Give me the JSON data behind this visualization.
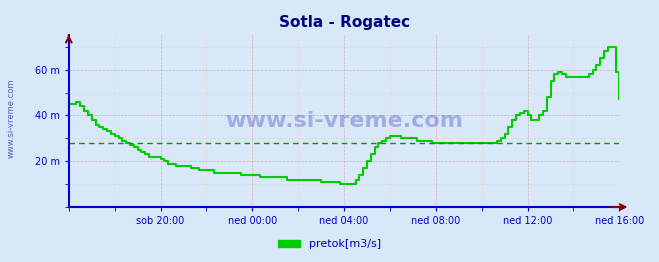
{
  "title": "Sotla - Rogatec",
  "title_color": "#000080",
  "bg_color": "#d8e8f8",
  "plot_bg_color": "#d8e8f8",
  "line_color": "#00cc00",
  "line_width": 1.5,
  "axis_color": "#0000cc",
  "tick_color": "#0000cc",
  "grid_color_major": "#cc9999",
  "grid_color_minor": "#eecccc",
  "ylabel_color": "#0000aa",
  "watermark": "www.si-vreme.com",
  "legend_label": "pretok[m3/s]",
  "legend_color": "#00cc00",
  "xticklabels": [
    "sob 20:00",
    "ned 00:00",
    "ned 04:00",
    "ned 08:00",
    "ned 12:00",
    "ned 16:00"
  ],
  "yticks": [
    20,
    40,
    60
  ],
  "yticklabels": [
    "20 m",
    "40 m",
    "60 m"
  ],
  "ylim": [
    0,
    75
  ],
  "xlim": [
    0,
    288
  ],
  "hline_value": 28,
  "hline_color": "#009900",
  "hline_style": "--",
  "x_tick_positions": [
    48,
    96,
    144,
    192,
    240,
    288
  ],
  "y_tick_positions": [
    20,
    40,
    60
  ],
  "data_x": [
    0,
    2,
    4,
    6,
    8,
    10,
    12,
    14,
    16,
    18,
    20,
    22,
    24,
    26,
    28,
    30,
    32,
    34,
    36,
    38,
    40,
    42,
    44,
    46,
    48,
    50,
    52,
    54,
    56,
    58,
    60,
    62,
    64,
    66,
    68,
    70,
    72,
    74,
    76,
    78,
    80,
    82,
    84,
    86,
    88,
    90,
    92,
    94,
    96,
    98,
    100,
    102,
    104,
    106,
    108,
    110,
    112,
    114,
    116,
    118,
    120,
    122,
    124,
    126,
    128,
    130,
    132,
    134,
    136,
    138,
    140,
    142,
    144,
    146,
    148,
    150,
    152,
    154,
    156,
    158,
    160,
    162,
    164,
    166,
    168,
    170,
    172,
    174,
    176,
    178,
    180,
    182,
    184,
    186,
    188,
    190,
    192,
    194,
    196,
    198,
    200,
    202,
    204,
    206,
    208,
    210,
    212,
    214,
    216,
    218,
    220,
    222,
    224,
    226,
    228,
    230,
    232,
    234,
    236,
    238,
    240,
    242,
    244,
    246,
    248,
    250,
    252,
    254,
    256,
    258,
    260,
    262,
    264,
    266,
    268,
    270,
    272,
    274,
    276,
    278,
    280,
    282,
    284,
    286,
    288
  ],
  "data_y": [
    45,
    45,
    46,
    44,
    42,
    40,
    38,
    36,
    35,
    34,
    33,
    32,
    31,
    30,
    29,
    28,
    27,
    26,
    25,
    24,
    23,
    22,
    22,
    22,
    21,
    20,
    19,
    19,
    18,
    18,
    18,
    18,
    17,
    17,
    16,
    16,
    16,
    16,
    15,
    15,
    15,
    15,
    15,
    15,
    15,
    14,
    14,
    14,
    14,
    14,
    13,
    13,
    13,
    13,
    13,
    13,
    13,
    12,
    12,
    12,
    12,
    12,
    12,
    12,
    12,
    12,
    11,
    11,
    11,
    11,
    11,
    10,
    10,
    10,
    10,
    12,
    14,
    17,
    20,
    23,
    26,
    28,
    29,
    30,
    31,
    31,
    31,
    30,
    30,
    30,
    30,
    29,
    29,
    29,
    29,
    28,
    28,
    28,
    28,
    28,
    28,
    28,
    28,
    28,
    28,
    28,
    28,
    28,
    28,
    28,
    28,
    28,
    29,
    30,
    32,
    35,
    38,
    40,
    41,
    42,
    40,
    38,
    38,
    40,
    42,
    48,
    55,
    58,
    59,
    58,
    57,
    57,
    57,
    57,
    57,
    57,
    58,
    60,
    62,
    65,
    68,
    70,
    70,
    59,
    47
  ]
}
